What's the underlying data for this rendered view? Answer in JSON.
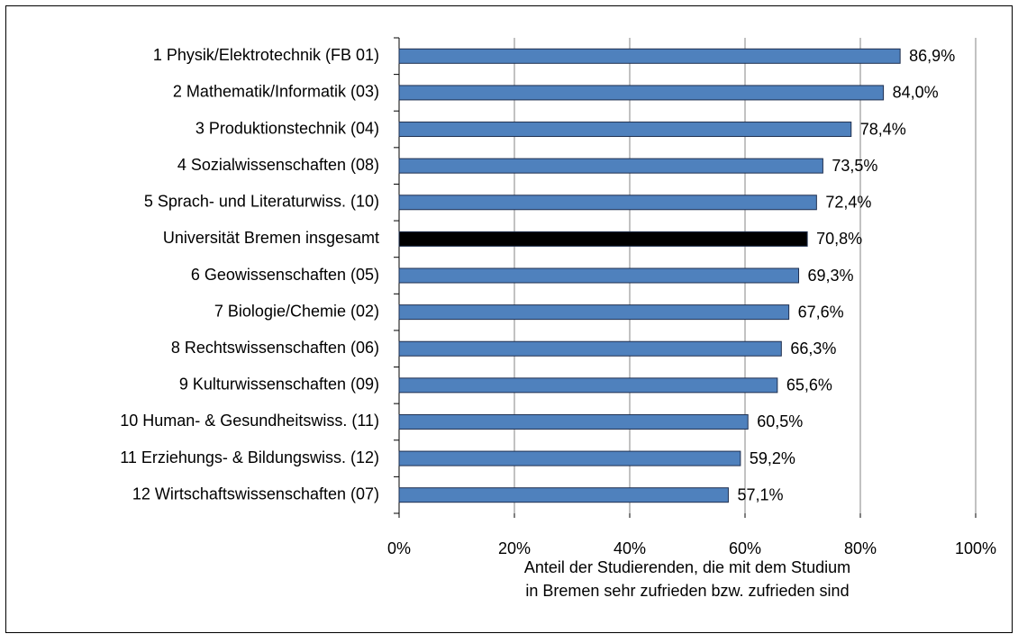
{
  "chart_data": {
    "type": "bar",
    "orientation": "horizontal",
    "categories": [
      "1 Physik/Elektrotechnik (FB 01)",
      "2 Mathematik/Informatik (03)",
      "3 Produktionstechnik (04)",
      "4 Sozialwissenschaften (08)",
      "5 Sprach- und Literaturwiss. (10)",
      "Universität Bremen insgesamt",
      "6 Geowissenschaften (05)",
      "7 Biologie/Chemie (02)",
      "8 Rechtswissenschaften (06)",
      "9 Kulturwissenschaften (09)",
      "10 Human- & Gesundheitswiss. (11)",
      "11 Erziehungs- & Bildungswiss. (12)",
      "12 Wirtschaftswissenschaften (07)"
    ],
    "values": [
      86.9,
      84.0,
      78.4,
      73.5,
      72.4,
      70.8,
      69.3,
      67.6,
      66.3,
      65.6,
      60.5,
      59.2,
      57.1
    ],
    "value_labels": [
      "86,9%",
      "84,0%",
      "78,4%",
      "73,5%",
      "72,4%",
      "70,8%",
      "69,3%",
      "67,6%",
      "66,3%",
      "65,6%",
      "60,5%",
      "59,2%",
      "57,1%"
    ],
    "colors": [
      "#4f81bd",
      "#4f81bd",
      "#4f81bd",
      "#4f81bd",
      "#4f81bd",
      "#000000",
      "#4f81bd",
      "#4f81bd",
      "#4f81bd",
      "#4f81bd",
      "#4f81bd",
      "#4f81bd",
      "#4f81bd"
    ],
    "xlim": [
      0,
      100
    ],
    "xticks": [
      {
        "value": 0,
        "label": "0%"
      },
      {
        "value": 20,
        "label": "20%"
      },
      {
        "value": 40,
        "label": "40%"
      },
      {
        "value": 60,
        "label": "60%"
      },
      {
        "value": 80,
        "label": "80%"
      },
      {
        "value": 100,
        "label": "100%"
      }
    ],
    "xlabel": [
      "Anteil der Studierenden, die mit dem Studium",
      "in Bremen sehr zufrieden bzw. zufrieden sind"
    ],
    "grid": true
  }
}
